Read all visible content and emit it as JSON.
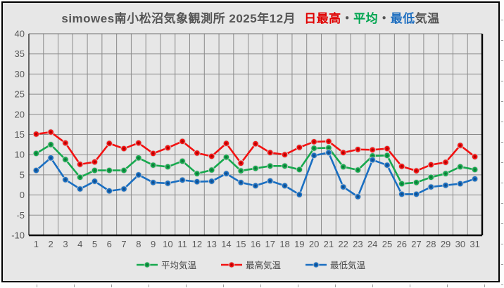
{
  "title": {
    "station_and_period": "simowes南小松沼気象観測所 2025年12月",
    "seg_max": "日最高",
    "dot1": "・",
    "seg_avg": "平均",
    "dot2": "・",
    "seg_min": "最低",
    "suffix": "気温"
  },
  "colors": {
    "background": "#e7e7e7",
    "gridline": "#8b8b8b",
    "axis_text": "#595959",
    "title_text": "#555555",
    "marker_halo": "#cfcfcf"
  },
  "chart_data": {
    "type": "line",
    "title": "simowes南小松沼気象観測所 2025年12月 日最高・平均・最低気温",
    "xlabel": "",
    "ylabel": "",
    "ylim": [
      -10,
      40
    ],
    "y_ticks": [
      40,
      35,
      30,
      25,
      20,
      15,
      10,
      5,
      0,
      -5,
      -10
    ],
    "grid": true,
    "legend_position": "bottom",
    "categories": [
      1,
      2,
      3,
      4,
      5,
      6,
      7,
      8,
      9,
      10,
      11,
      12,
      13,
      14,
      15,
      16,
      17,
      18,
      19,
      20,
      21,
      22,
      23,
      24,
      25,
      26,
      27,
      28,
      29,
      30,
      31
    ],
    "series": [
      {
        "name": "平均気温",
        "color": "#17a94e",
        "marker_inner": "#0d7a38",
        "values": [
          10.3,
          12.5,
          8.8,
          4.4,
          6.1,
          6.1,
          6.1,
          9.2,
          7.4,
          7.0,
          8.4,
          5.3,
          6.2,
          9.4,
          6.0,
          6.6,
          7.2,
          7.2,
          6.3,
          11.6,
          11.7,
          7.0,
          6.2,
          9.7,
          9.8,
          2.8,
          3.1,
          4.4,
          5.3,
          7.0,
          6.3
        ]
      },
      {
        "name": "最高気温",
        "color": "#f31212",
        "marker_inner": "#b30000",
        "values": [
          15.1,
          15.6,
          12.9,
          7.6,
          8.2,
          12.8,
          11.5,
          12.9,
          10.3,
          11.7,
          13.3,
          10.4,
          9.6,
          12.8,
          7.9,
          12.7,
          10.5,
          10.0,
          11.8,
          13.2,
          13.3,
          10.5,
          11.3,
          11.2,
          11.5,
          7.1,
          6.0,
          7.5,
          8.1,
          12.3,
          9.5
        ]
      },
      {
        "name": "最低気温",
        "color": "#1a6fc2",
        "marker_inner": "#114e8c",
        "values": [
          6.1,
          9.2,
          3.8,
          1.5,
          3.4,
          1.0,
          1.5,
          5.0,
          3.1,
          2.9,
          3.7,
          3.3,
          3.4,
          5.3,
          3.1,
          2.3,
          3.5,
          2.3,
          0.1,
          9.8,
          10.5,
          2.0,
          -0.4,
          8.7,
          7.4,
          0.2,
          0.2,
          2.0,
          2.4,
          2.8,
          4.0
        ]
      }
    ]
  }
}
